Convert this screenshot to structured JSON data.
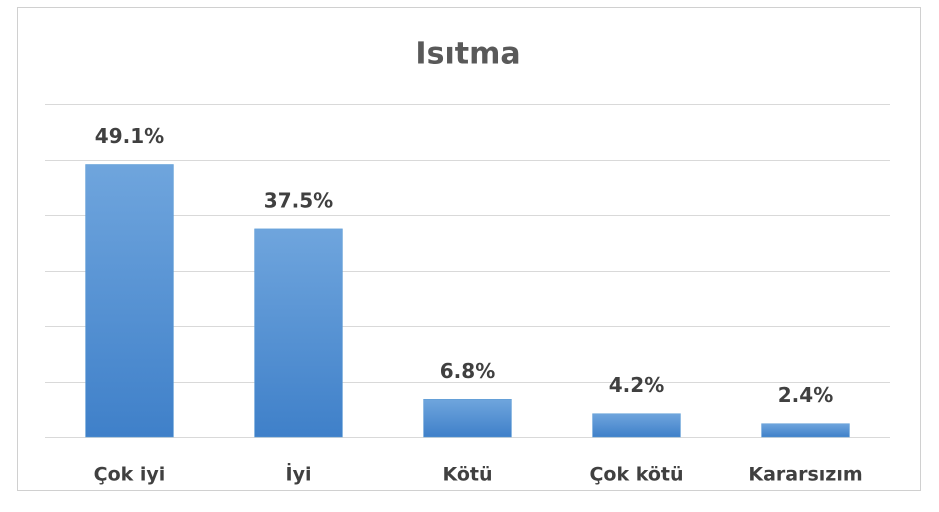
{
  "chart_data": {
    "type": "bar",
    "title": "Isıtma",
    "categories": [
      "Çok iyi",
      "İyi",
      "Kötü",
      "Çok kötü",
      "Kararsızım"
    ],
    "values": [
      49.1,
      37.5,
      6.8,
      4.2,
      2.4
    ],
    "value_labels": [
      "49.1%",
      "37.5%",
      "6.8%",
      "4.2%",
      "2.4%"
    ],
    "color": "#5b9bd5",
    "ylim": [
      0,
      60
    ],
    "yticks": [
      0,
      10,
      20,
      30,
      40,
      50,
      60
    ],
    "grid": true
  }
}
